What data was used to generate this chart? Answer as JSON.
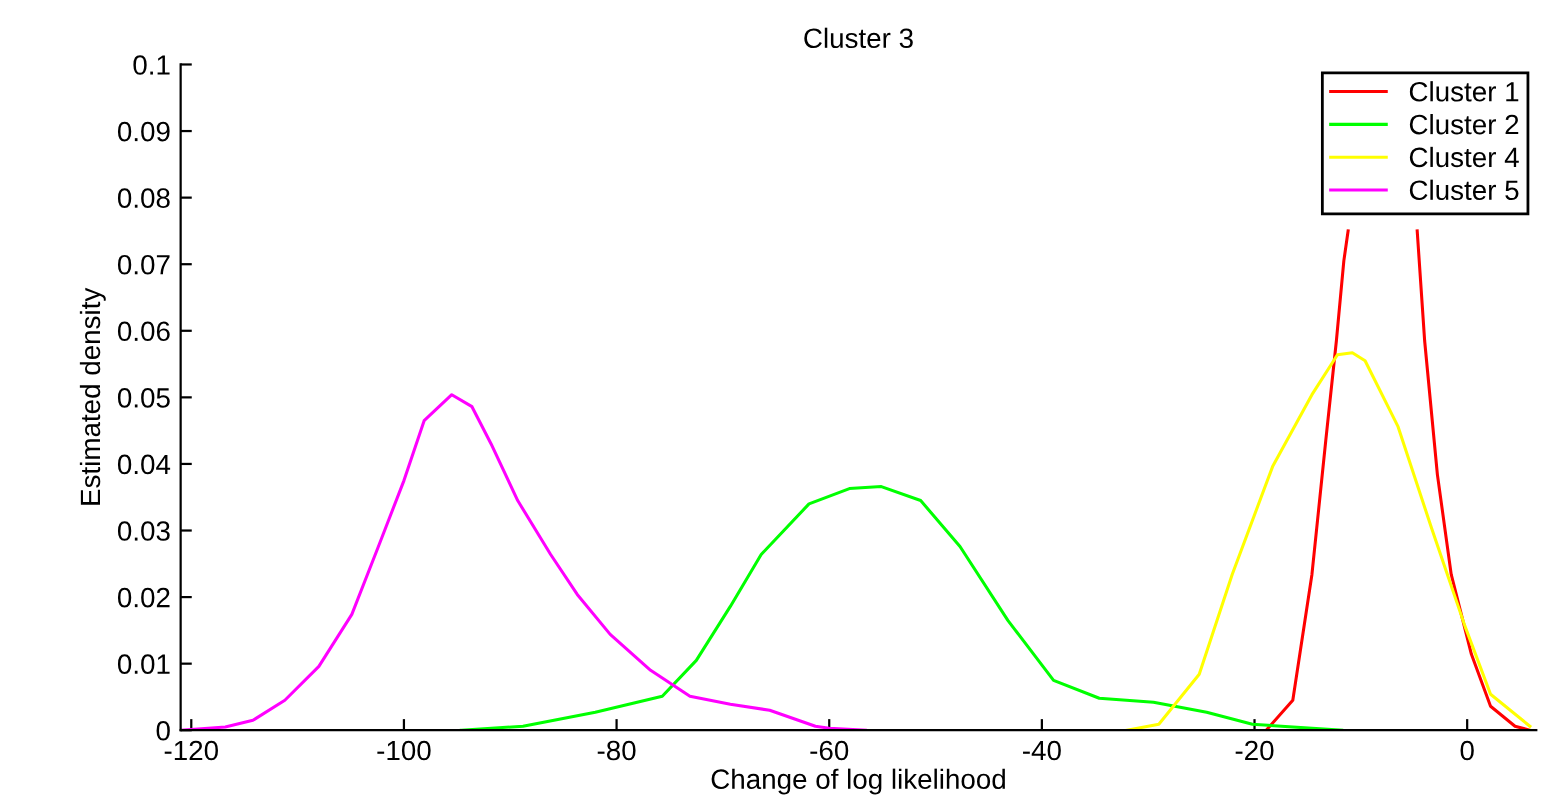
{
  "chart_data": {
    "type": "line",
    "title": "Cluster 3",
    "xlabel": "Change of log likelihood",
    "ylabel": "Estimated density",
    "xlim": [
      -121,
      6.5
    ],
    "xticks": [
      -120,
      -100,
      -80,
      -60,
      -40,
      -20,
      0
    ],
    "ylim": [
      0,
      0.1
    ],
    "yticks": [
      0,
      0.01,
      0.02,
      0.03,
      0.04,
      0.05,
      0.06,
      0.07,
      0.08,
      0.09,
      0.1
    ],
    "grid": false,
    "legend": "top right",
    "marker": "none",
    "line_style": "solid",
    "series": [
      {
        "name": "Cluster 1",
        "color": "#ff0000",
        "x": [
          -18.9,
          -16.4,
          -14.6,
          -13.3,
          -12.3,
          -11.6,
          -11.2,
          -8,
          -4.7,
          -4,
          -2.8,
          -1.5,
          0.4,
          2.2,
          4.5,
          5.9
        ],
        "values": [
          0,
          0.0045,
          0.0234,
          0.0435,
          0.0585,
          0.0705,
          0.075,
          null,
          0.075,
          0.0585,
          0.0384,
          0.0234,
          0.0114,
          0.0036,
          0.0006,
          0
        ]
      },
      {
        "name": "Cluster 2",
        "color": "#00ff00",
        "x": [
          -94.6,
          -88.8,
          -82,
          -75.7,
          -72.5,
          -69.3,
          -66.4,
          -61.9,
          -58.1,
          -55.1,
          -51.4,
          -47.7,
          -43.2,
          -38.9,
          -34.6,
          -29.5,
          -24.5,
          -20.2,
          -11.8
        ],
        "values": [
          0,
          0.0006,
          0.0027,
          0.0051,
          0.0105,
          0.0186,
          0.0264,
          0.034,
          0.0363,
          0.0366,
          0.0345,
          0.0276,
          0.0165,
          0.0075,
          0.0048,
          0.0042,
          0.0027,
          0.0009,
          0
        ]
      },
      {
        "name": "Cluster 4",
        "color": "#ffff00",
        "x": [
          -32,
          -29,
          -25.2,
          -22.1,
          -18.3,
          -14.6,
          -12.2,
          -10.8,
          -9.6,
          -6.5,
          -3.4,
          -0.2,
          2.2,
          5.9
        ],
        "values": [
          0,
          0.0009,
          0.0084,
          0.0234,
          0.0396,
          0.0504,
          0.0564,
          0.0567,
          0.0555,
          0.0456,
          0.0306,
          0.0156,
          0.0054,
          0.0006
        ]
      },
      {
        "name": "Cluster 5",
        "color": "#ff00ff",
        "x": [
          -121,
          -116.8,
          -114.2,
          -111.2,
          -108,
          -104.9,
          -102.4,
          -100,
          -98.1,
          -95.5,
          -93.6,
          -91.8,
          -89.3,
          -86.2,
          -83.7,
          -80.6,
          -76.8,
          -73.1,
          -69.3,
          -65.6,
          -61.3,
          -60,
          -56.6
        ],
        "values": [
          0,
          0.0005,
          0.0015,
          0.0045,
          0.0096,
          0.0174,
          0.0276,
          0.0375,
          0.0465,
          0.0504,
          0.0486,
          0.043,
          0.0345,
          0.0264,
          0.0204,
          0.0144,
          0.009,
          0.0051,
          0.0039,
          0.003,
          0.0006,
          0.0003,
          0
        ]
      }
    ]
  }
}
